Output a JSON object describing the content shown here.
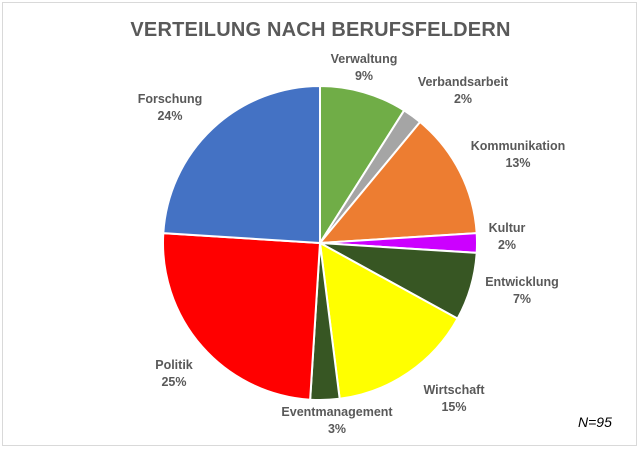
{
  "chart_data": {
    "type": "pie",
    "title": "VERTEILUNG NACH BERUFSFELDERN",
    "note": "N=95",
    "slices": [
      {
        "label": "Verwaltung",
        "value": 9,
        "value_label": "9%",
        "color": "#70ad47"
      },
      {
        "label": "Verbandsarbeit",
        "value": 2,
        "value_label": "2%",
        "color": "#a5a5a5"
      },
      {
        "label": "Kommunikation",
        "value": 13,
        "value_label": "13%",
        "color": "#ed7d31"
      },
      {
        "label": "Kultur",
        "value": 2,
        "value_label": "2%",
        "color": "#cc00ff"
      },
      {
        "label": "Entwicklung",
        "value": 7,
        "value_label": "7%",
        "color": "#375623"
      },
      {
        "label": "Wirtschaft",
        "value": 15,
        "value_label": "15%",
        "color": "#ffff00"
      },
      {
        "label": "Eventmanagement",
        "value": 3,
        "value_label": "3%",
        "color": "#375623"
      },
      {
        "label": "Politik",
        "value": 25,
        "value_label": "25%",
        "color": "#ff0000"
      },
      {
        "label": "Forschung",
        "value": 24,
        "value_label": "24%",
        "color": "#4472c4"
      }
    ]
  }
}
